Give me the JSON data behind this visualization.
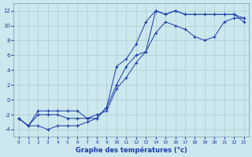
{
  "xlabel": "Graphe des températures (°c)",
  "bg_color": "#cce8ee",
  "grid_color": "#aacccc",
  "line_color": "#1a3aaa",
  "xlim": [
    -0.5,
    23.5
  ],
  "ylim": [
    -5,
    13
  ],
  "yticks": [
    -4,
    -2,
    0,
    2,
    4,
    6,
    8,
    10,
    12
  ],
  "xticks": [
    0,
    1,
    2,
    3,
    4,
    5,
    6,
    7,
    8,
    9,
    10,
    11,
    12,
    13,
    14,
    15,
    16,
    17,
    18,
    19,
    20,
    21,
    22,
    23
  ],
  "line1_x": [
    0,
    1,
    2,
    3,
    4,
    5,
    6,
    7,
    8,
    9,
    10,
    11,
    12,
    13,
    14,
    15,
    16,
    17,
    18,
    19,
    20,
    21,
    22,
    23
  ],
  "line1_y": [
    -2.5,
    -3.5,
    -3.5,
    -4.0,
    -3.5,
    -3.5,
    -3.5,
    -3.0,
    -2.5,
    -1.0,
    4.5,
    5.5,
    7.5,
    10.5,
    12.0,
    11.5,
    12.0,
    11.5,
    11.5,
    11.5,
    11.5,
    11.5,
    11.5,
    10.5
  ],
  "line2_x": [
    0,
    1,
    2,
    3,
    4,
    5,
    6,
    7,
    8,
    9,
    10,
    11,
    12,
    13,
    14,
    15,
    16,
    17,
    18,
    19,
    20,
    21,
    22,
    23
  ],
  "line2_y": [
    -2.5,
    -3.5,
    -2.0,
    -2.0,
    -2.0,
    -2.5,
    -2.5,
    -2.5,
    -2.5,
    -1.0,
    2.0,
    4.5,
    6.0,
    6.5,
    12.0,
    11.5,
    12.0,
    11.5,
    11.5,
    11.5,
    11.5,
    11.5,
    11.5,
    11.0
  ],
  "line3_x": [
    0,
    1,
    2,
    3,
    4,
    5,
    6,
    7,
    8,
    9,
    10,
    11,
    12,
    13,
    14,
    15,
    16,
    17,
    18,
    19,
    20,
    21,
    22,
    23
  ],
  "line3_y": [
    -2.5,
    -3.5,
    -1.5,
    -1.5,
    -1.5,
    -1.5,
    -1.5,
    -2.5,
    -2.0,
    -1.5,
    1.5,
    3.0,
    5.0,
    6.5,
    9.0,
    10.5,
    10.0,
    9.5,
    8.5,
    8.0,
    8.5,
    10.5,
    11.0,
    11.0
  ]
}
